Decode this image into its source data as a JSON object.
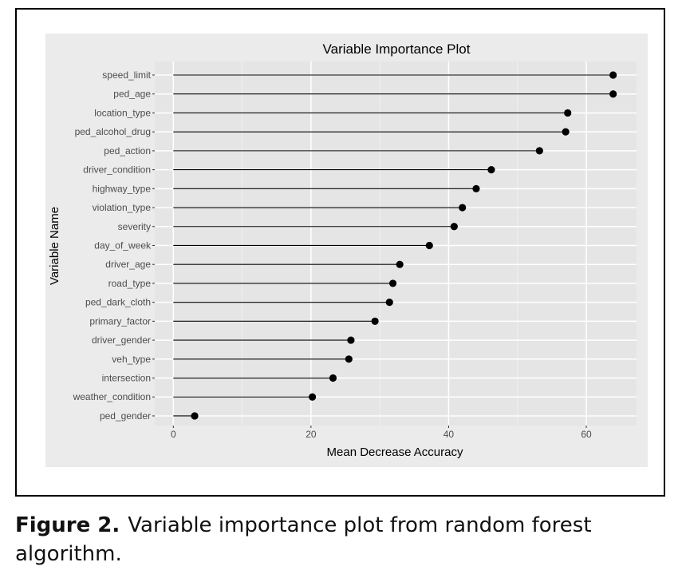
{
  "chart_data": {
    "type": "lollipop",
    "orientation": "horizontal",
    "title": "Variable Importance Plot",
    "xlabel": "Mean Decrease Accuracy",
    "ylabel": "Variable Name",
    "xlim": [
      -2.7,
      67.3
    ],
    "xticks": [
      0,
      20,
      40,
      60
    ],
    "grid": true,
    "categories": [
      "speed_limit",
      "ped_age",
      "location_type",
      "ped_alcohol_drug",
      "ped_action",
      "driver_condition",
      "highway_type",
      "violation_type",
      "severity",
      "day_of_week",
      "driver_age",
      "road_type",
      "ped_dark_cloth",
      "primary_factor",
      "driver_gender",
      "veh_type",
      "intersection",
      "weather_condition",
      "ped_gender"
    ],
    "values": [
      63.9,
      63.9,
      57.3,
      57.0,
      53.2,
      46.2,
      44.0,
      42.0,
      40.8,
      37.2,
      32.9,
      31.9,
      31.4,
      29.3,
      25.8,
      25.5,
      23.2,
      20.2,
      3.1
    ]
  },
  "caption": {
    "label": "Figure 2.",
    "text": "Variable importance plot from random forest algorithm."
  }
}
